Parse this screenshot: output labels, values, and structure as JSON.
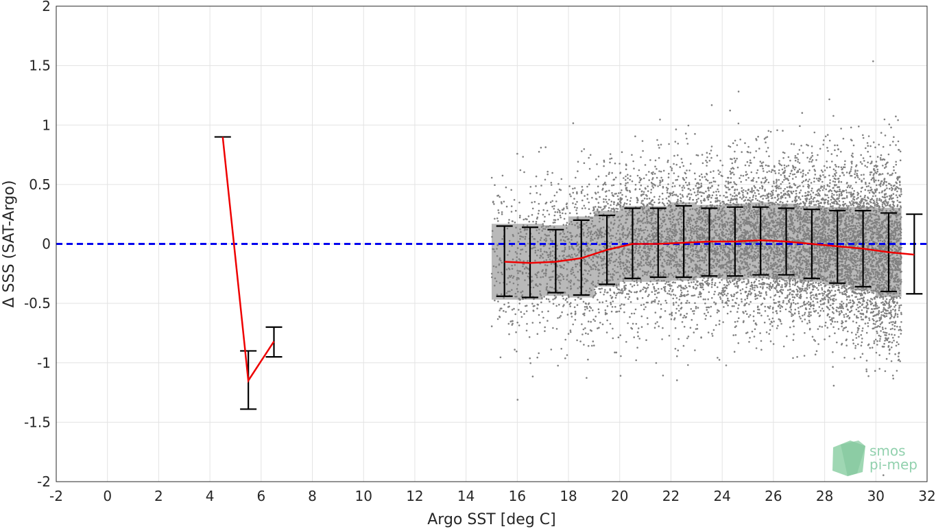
{
  "chart_data": {
    "type": "scatter",
    "xlabel": "Argo SST [deg C]",
    "ylabel": "Δ SSS (SAT-Argo)",
    "xlim": [
      -2,
      32
    ],
    "ylim": [
      -2,
      2
    ],
    "xticks": [
      -2,
      0,
      2,
      4,
      6,
      8,
      10,
      12,
      14,
      16,
      18,
      20,
      22,
      24,
      26,
      28,
      30,
      32
    ],
    "yticks": [
      -2,
      -1.5,
      -1,
      -0.5,
      0,
      0.5,
      1,
      1.5,
      2
    ],
    "ytick_labels": [
      "-2",
      "-1.5",
      "-1",
      "-0.5",
      "0",
      "0.5",
      "1",
      "1.5",
      "2"
    ],
    "grid": true,
    "zero_line": {
      "y": 0,
      "color": "#0000ee",
      "style": "dashed"
    },
    "scatter_cloud": {
      "color": "#808080",
      "description_bins": [
        {
          "x_range": [
            15.0,
            16.0
          ],
          "center": -0.15,
          "sd": 0.29
        },
        {
          "x_range": [
            16.0,
            17.0
          ],
          "center": -0.15,
          "sd": 0.29
        },
        {
          "x_range": [
            17.0,
            18.0
          ],
          "center": -0.14,
          "sd": 0.27
        },
        {
          "x_range": [
            18.0,
            19.0
          ],
          "center": -0.11,
          "sd": 0.31
        },
        {
          "x_range": [
            19.0,
            20.0
          ],
          "center": -0.04,
          "sd": 0.29
        },
        {
          "x_range": [
            20.0,
            21.0
          ],
          "center": 0.0,
          "sd": 0.29
        },
        {
          "x_range": [
            21.0,
            22.0
          ],
          "center": 0.0,
          "sd": 0.29
        },
        {
          "x_range": [
            22.0,
            23.0
          ],
          "center": 0.02,
          "sd": 0.3
        },
        {
          "x_range": [
            23.0,
            24.0
          ],
          "center": 0.02,
          "sd": 0.28
        },
        {
          "x_range": [
            24.0,
            25.0
          ],
          "center": 0.02,
          "sd": 0.29
        },
        {
          "x_range": [
            25.0,
            26.0
          ],
          "center": 0.03,
          "sd": 0.29
        },
        {
          "x_range": [
            26.0,
            27.0
          ],
          "center": 0.02,
          "sd": 0.29
        },
        {
          "x_range": [
            27.0,
            28.0
          ],
          "center": 0.0,
          "sd": 0.29
        },
        {
          "x_range": [
            28.0,
            29.0
          ],
          "center": -0.02,
          "sd": 0.3
        },
        {
          "x_range": [
            29.0,
            30.0
          ],
          "center": -0.04,
          "sd": 0.32
        },
        {
          "x_range": [
            30.0,
            31.0
          ],
          "center": -0.07,
          "sd": 0.34
        }
      ]
    },
    "series": [
      {
        "color": "#ee0000",
        "x": [
          4.5,
          5.5,
          6.5
        ],
        "mean": [
          0.9,
          -1.15,
          -0.82
        ],
        "lower": [
          0.9,
          -1.39,
          -0.95
        ],
        "upper": [
          0.9,
          -0.9,
          -0.7
        ]
      },
      {
        "color": "#ee0000",
        "x": [
          15.5,
          16.5,
          17.5,
          18.5,
          19.5,
          20.5,
          21.5,
          22.5,
          23.5,
          24.5,
          25.5,
          26.5,
          27.5,
          28.5,
          29.5,
          30.5,
          31.5
        ],
        "mean": [
          -0.15,
          -0.16,
          -0.15,
          -0.12,
          -0.05,
          0.0,
          0.0,
          0.01,
          0.02,
          0.02,
          0.03,
          0.02,
          0.0,
          -0.02,
          -0.04,
          -0.07,
          -0.09
        ],
        "lower": [
          -0.44,
          -0.45,
          -0.41,
          -0.43,
          -0.34,
          -0.29,
          -0.28,
          -0.28,
          -0.27,
          -0.27,
          -0.26,
          -0.26,
          -0.29,
          -0.33,
          -0.36,
          -0.4,
          -0.42
        ],
        "upper": [
          0.15,
          0.14,
          0.12,
          0.2,
          0.24,
          0.3,
          0.3,
          0.32,
          0.3,
          0.31,
          0.31,
          0.3,
          0.29,
          0.28,
          0.28,
          0.26,
          0.25
        ]
      }
    ]
  },
  "watermark": {
    "line1": "smos",
    "line2": "pi-mep",
    "color": "#7fc9a0"
  }
}
